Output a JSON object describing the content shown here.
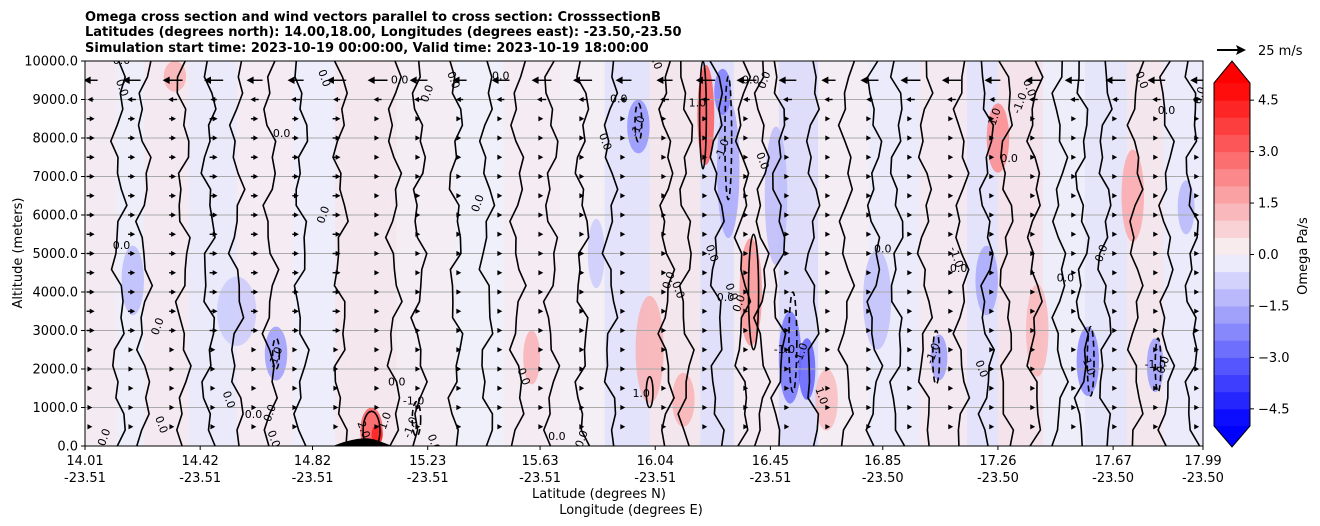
{
  "chart_data": {
    "type": "heatmap",
    "title_lines": [
      "Omega cross section and wind vectors parallel to cross section: CrosssectionB",
      "Latitudes (degrees north): 14.00,18.00, Longitudes (degrees east): -23.50,-23.50",
      "Simulation start time: 2023-10-19 00:00:00, Valid time: 2023-10-19 18:00:00"
    ],
    "ylabel": "Altitude (meters)",
    "xlabel_line1": "Latitude (degrees N)",
    "xlabel_line2": "Longitude (degrees E)",
    "ylim": [
      0,
      10000
    ],
    "xlim": [
      14.01,
      17.99
    ],
    "y_ticks": [
      "0.0",
      "1000.0",
      "2000.0",
      "3000.0",
      "4000.0",
      "5000.0",
      "6000.0",
      "7000.0",
      "8000.0",
      "9000.0",
      "10000.0"
    ],
    "y_tick_values": [
      0,
      1000,
      2000,
      3000,
      4000,
      5000,
      6000,
      7000,
      8000,
      9000,
      10000
    ],
    "x_ticks": [
      {
        "lat": "14.01",
        "lon": "-23.51",
        "v": 14.01
      },
      {
        "lat": "14.42",
        "lon": "-23.51",
        "v": 14.42
      },
      {
        "lat": "14.82",
        "lon": "-23.51",
        "v": 14.82
      },
      {
        "lat": "15.23",
        "lon": "-23.51",
        "v": 15.23
      },
      {
        "lat": "15.63",
        "lon": "-23.51",
        "v": 15.63
      },
      {
        "lat": "16.04",
        "lon": "-23.51",
        "v": 16.04
      },
      {
        "lat": "16.45",
        "lon": "-23.51",
        "v": 16.45
      },
      {
        "lat": "16.85",
        "lon": "-23.50",
        "v": 16.85
      },
      {
        "lat": "17.26",
        "lon": "-23.50",
        "v": 17.26
      },
      {
        "lat": "17.67",
        "lon": "-23.50",
        "v": 17.67
      },
      {
        "lat": "17.99",
        "lon": "-23.50",
        "v": 17.99
      }
    ],
    "colorbar": {
      "label": "Omega Pa/s",
      "range": [
        -5.0,
        5.0
      ],
      "ticks": [
        "−4.5",
        "−3.0",
        "−1.5",
        "0.0",
        "1.5",
        "3.0",
        "4.5"
      ],
      "tick_values": [
        -4.5,
        -3.0,
        -1.5,
        0.0,
        1.5,
        3.0,
        4.5
      ],
      "extend": "both",
      "low_color": "#0000ff",
      "mid_color": "#f7f7fb",
      "high_color": "#ff0000"
    },
    "quiver_key": {
      "label": "25 m/s",
      "value": 25
    },
    "contour_levels": [
      -1.0,
      0.0,
      1.0,
      2.0
    ],
    "contour_labels": [
      {
        "text": "0.0",
        "lat": 14.08,
        "alt": 220
      },
      {
        "text": "0.0",
        "lat": 14.28,
        "alt": 550
      },
      {
        "text": "0.0",
        "lat": 14.14,
        "alt": 5200
      },
      {
        "text": "0.0",
        "lat": 14.27,
        "alt": 3100
      },
      {
        "text": "0.0",
        "lat": 14.14,
        "alt": 9300
      },
      {
        "text": "0.0",
        "lat": 14.14,
        "alt": 10000
      },
      {
        "text": "-1.0",
        "lat": 14.69,
        "alt": 2300
      },
      {
        "text": "0.0",
        "lat": 14.52,
        "alt": 1200
      },
      {
        "text": "0.0",
        "lat": 14.61,
        "alt": 800
      },
      {
        "text": "0.0",
        "lat": 14.67,
        "alt": 850
      },
      {
        "text": "0.0",
        "lat": 14.68,
        "alt": 180
      },
      {
        "text": "0.0",
        "lat": 14.71,
        "alt": 8100
      },
      {
        "text": "0.0",
        "lat": 14.86,
        "alt": 6000
      },
      {
        "text": "0.0",
        "lat": 14.86,
        "alt": 9550
      },
      {
        "text": "0.0",
        "lat": 15.12,
        "alt": 1650
      },
      {
        "text": "1.0",
        "lat": 15.08,
        "alt": 650
      },
      {
        "text": "2.0",
        "lat": 15.0,
        "alt": 420
      },
      {
        "text": "-1.0",
        "lat": 15.18,
        "alt": 1150
      },
      {
        "text": "-1.0",
        "lat": 15.17,
        "alt": 480
      },
      {
        "text": "0.0",
        "lat": 15.25,
        "alt": 80
      },
      {
        "text": "0.0",
        "lat": 15.13,
        "alt": 9500
      },
      {
        "text": "0.0",
        "lat": 15.23,
        "alt": 9150
      },
      {
        "text": "0.0",
        "lat": 15.32,
        "alt": 9500
      },
      {
        "text": "0.0",
        "lat": 15.49,
        "alt": 9600
      },
      {
        "text": "0.0",
        "lat": 15.41,
        "alt": 6300
      },
      {
        "text": "0.0",
        "lat": 15.57,
        "alt": 1800
      },
      {
        "text": "0.0",
        "lat": 15.69,
        "alt": 240
      },
      {
        "text": "0.0",
        "lat": 15.78,
        "alt": 180
      },
      {
        "text": "0.0",
        "lat": 15.86,
        "alt": 7900
      },
      {
        "text": "0.0",
        "lat": 15.91,
        "alt": 9000
      },
      {
        "text": "-1.0",
        "lat": 15.98,
        "alt": 8300
      },
      {
        "text": "0.0",
        "lat": 16.04,
        "alt": 10000
      },
      {
        "text": "1.0",
        "lat": 15.99,
        "alt": 1350
      },
      {
        "text": "0.0",
        "lat": 16.09,
        "alt": 4300
      },
      {
        "text": "0.0",
        "lat": 16.12,
        "alt": 4050
      },
      {
        "text": "1.0",
        "lat": 16.19,
        "alt": 8900
      },
      {
        "text": "-1.0",
        "lat": 16.28,
        "alt": 7700
      },
      {
        "text": "0.0",
        "lat": 16.24,
        "alt": 5000
      },
      {
        "text": "0.0",
        "lat": 16.38,
        "alt": 9500
      },
      {
        "text": "0.0",
        "lat": 16.43,
        "alt": 9500
      },
      {
        "text": "0.0",
        "lat": 16.31,
        "alt": 4000
      },
      {
        "text": "0.0",
        "lat": 16.29,
        "alt": 3850
      },
      {
        "text": "0.0",
        "lat": 16.34,
        "alt": 3700
      },
      {
        "text": "0.0",
        "lat": 16.42,
        "alt": 7400
      },
      {
        "text": "-1.0",
        "lat": 16.5,
        "alt": 2500
      },
      {
        "text": "-1.0",
        "lat": 16.56,
        "alt": 2400
      },
      {
        "text": "1.0",
        "lat": 16.63,
        "alt": 1300
      },
      {
        "text": "0.0",
        "lat": 16.85,
        "alt": 5100
      },
      {
        "text": "-1.0",
        "lat": 17.03,
        "alt": 2400
      },
      {
        "text": "-1.0",
        "lat": 17.11,
        "alt": 4900
      },
      {
        "text": "0.0",
        "lat": 17.12,
        "alt": 4600
      },
      {
        "text": "1.0",
        "lat": 17.25,
        "alt": 8550
      },
      {
        "text": "0.0",
        "lat": 17.2,
        "alt": 2000
      },
      {
        "text": "0.0",
        "lat": 17.3,
        "alt": 7450
      },
      {
        "text": "-1.0",
        "lat": 17.34,
        "alt": 8900
      },
      {
        "text": "0.0",
        "lat": 17.37,
        "alt": 9300
      },
      {
        "text": "0.0",
        "lat": 17.5,
        "alt": 4350
      },
      {
        "text": "0.0",
        "lat": 17.63,
        "alt": 5000
      },
      {
        "text": "-1.0",
        "lat": 17.58,
        "alt": 2100
      },
      {
        "text": "-1.0",
        "lat": 17.82,
        "alt": 2100
      },
      {
        "text": "0.0",
        "lat": 17.85,
        "alt": 2100
      },
      {
        "text": "0.0",
        "lat": 17.77,
        "alt": 9500
      },
      {
        "text": "0.0",
        "lat": 17.86,
        "alt": 8700
      },
      {
        "text": "0.0",
        "lat": 17.98,
        "alt": 9100
      }
    ]
  }
}
